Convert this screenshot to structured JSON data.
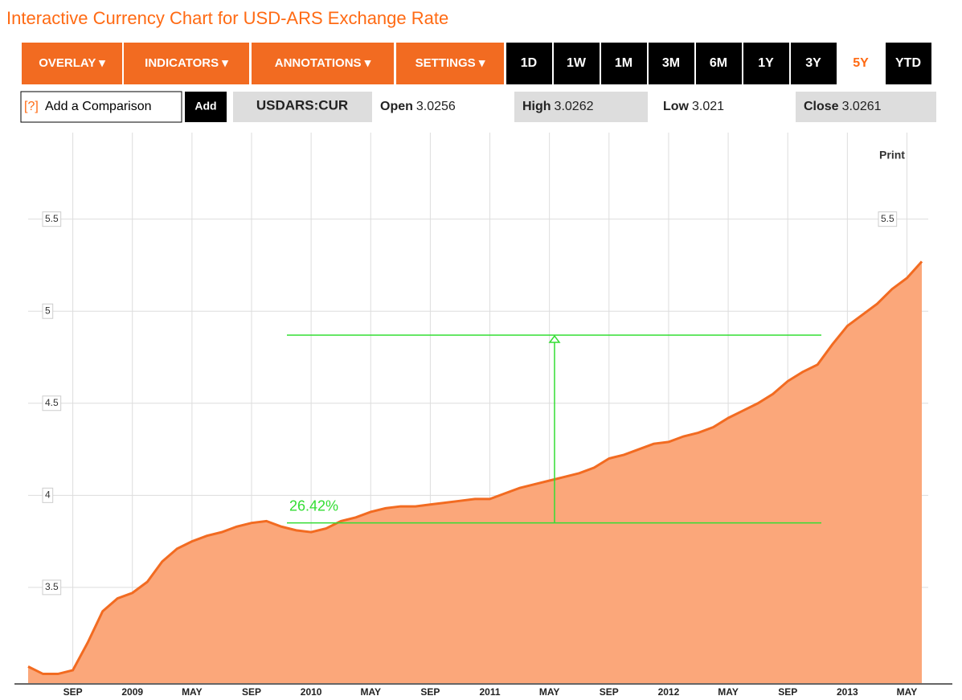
{
  "header": {
    "title": "Interactive Currency Chart for USD-ARS Exchange Rate"
  },
  "toolbar": {
    "menus": [
      "OVERLAY ▾",
      "INDICATORS ▾",
      "ANNOTATIONS ▾",
      "SETTINGS ▾"
    ],
    "ranges": [
      "1D",
      "1W",
      "1M",
      "3M",
      "6M",
      "1Y",
      "3Y",
      "5Y",
      "YTD"
    ],
    "active_range": 7
  },
  "info": {
    "help": "[?]",
    "placeholder": "Add a Comparison",
    "button": "Add",
    "symbol": "USDARS:CUR",
    "quotes": [
      {
        "label": "Open",
        "value": "3.0256"
      },
      {
        "label": "High",
        "value": "3.0262"
      },
      {
        "label": "Low",
        "value": "3.021"
      },
      {
        "label": "Close",
        "value": "3.0261"
      }
    ],
    "print": "Print"
  },
  "chart_data": {
    "type": "area",
    "categories": [
      null,
      null,
      null,
      "SEP",
      null,
      null,
      null,
      "2009",
      null,
      null,
      null,
      "MAY",
      null,
      null,
      null,
      "SEP",
      null,
      null,
      null,
      "2010",
      null,
      null,
      null,
      "MAY",
      null,
      null,
      null,
      "SEP",
      null,
      null,
      null,
      "2011",
      null,
      null,
      null,
      "MAY",
      null,
      null,
      null,
      "SEP",
      null,
      null,
      null,
      "2012",
      null,
      null,
      null,
      "MAY",
      null,
      null,
      null,
      "SEP",
      null,
      null,
      null,
      "2013",
      null,
      null,
      null,
      "MAY",
      null
    ],
    "values": [
      3.07,
      3.03,
      3.03,
      3.05,
      3.2,
      3.37,
      3.44,
      3.47,
      3.53,
      3.64,
      3.71,
      3.75,
      3.78,
      3.8,
      3.83,
      3.85,
      3.86,
      3.83,
      3.81,
      3.8,
      3.82,
      3.86,
      3.88,
      3.91,
      3.93,
      3.94,
      3.94,
      3.95,
      3.96,
      3.97,
      3.98,
      3.98,
      4.01,
      4.04,
      4.06,
      4.08,
      4.1,
      4.12,
      4.15,
      4.2,
      4.22,
      4.25,
      4.28,
      4.29,
      4.32,
      4.34,
      4.37,
      4.42,
      4.46,
      4.5,
      4.55,
      4.62,
      4.67,
      4.71,
      4.82,
      4.92,
      4.98,
      5.04,
      5.12,
      5.18,
      5.27
    ],
    "color": "#f26b21",
    "fill": "#fba77a",
    "ylim": [
      2.98,
      5.97
    ],
    "yticks": [
      3.5,
      4,
      4.5,
      5,
      5.5
    ],
    "grid": true,
    "annotation": {
      "label": "26.42%",
      "from": 3.85,
      "to": 4.87,
      "color": "#33dd33"
    }
  }
}
